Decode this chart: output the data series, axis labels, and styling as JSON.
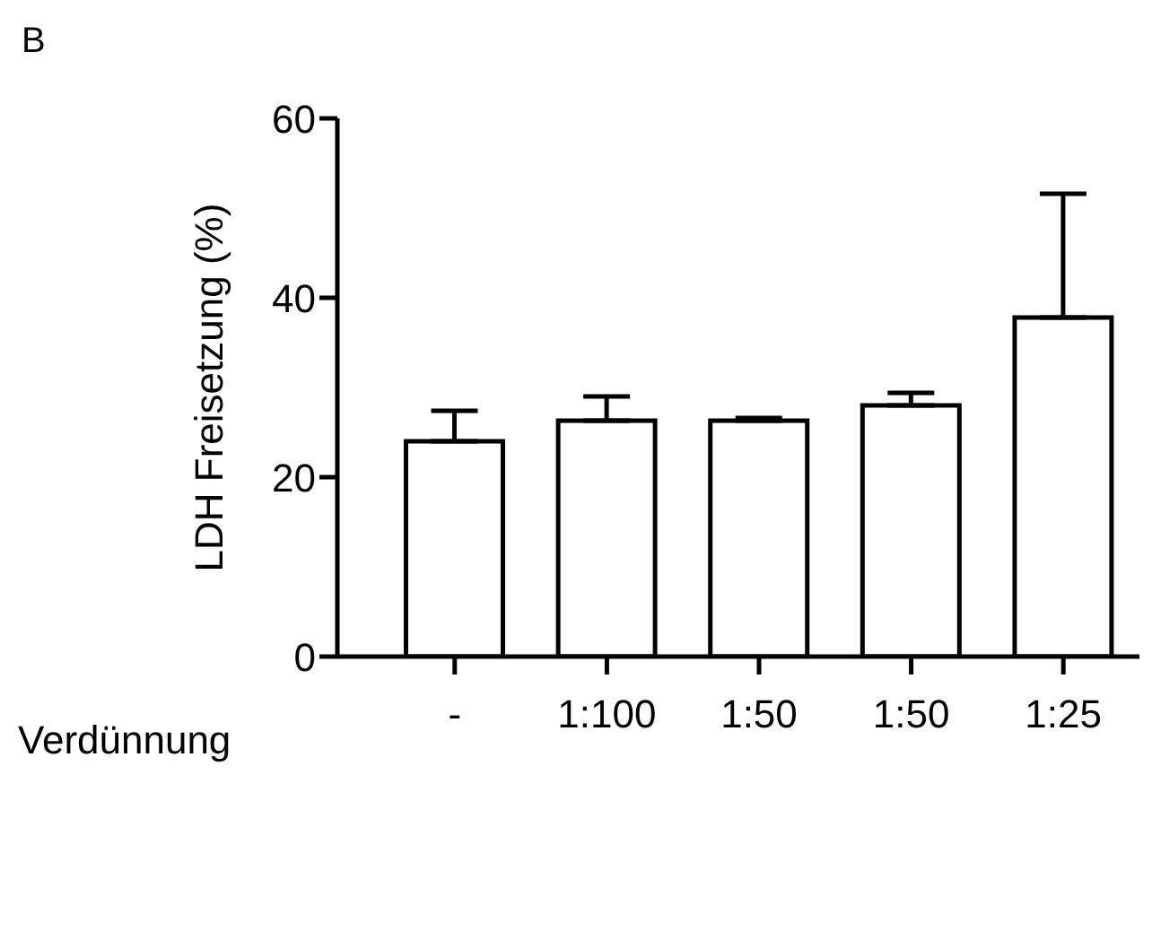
{
  "chart_data": {
    "type": "bar",
    "title": "B",
    "xlabel": "Verdünnung",
    "ylabel": "LDH Freisetzung (%)",
    "categories": [
      "-",
      "1:100",
      "1:50",
      "1:50",
      "1:25"
    ],
    "values": [
      24,
      26.3,
      26.3,
      28,
      37.8
    ],
    "errors": [
      [
        24,
        27.4
      ],
      [
        26.3,
        29
      ],
      [
        26.3,
        26.6
      ],
      [
        28,
        29.4
      ],
      [
        37.8,
        51.6
      ]
    ],
    "color": "#ffffff",
    "ylim": [
      0,
      60
    ],
    "yticks": [
      0,
      20,
      40,
      60
    ],
    "grid": false,
    "legend": false
  }
}
